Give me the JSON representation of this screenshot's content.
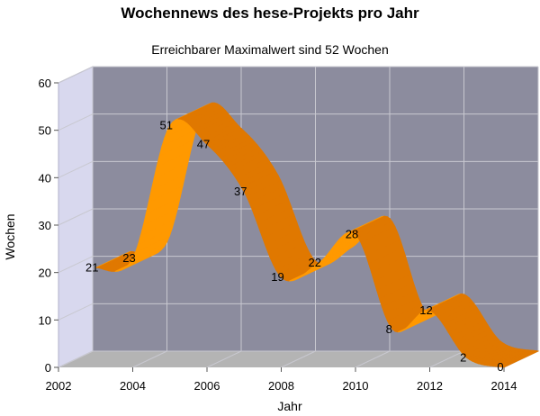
{
  "chart_data": {
    "type": "area",
    "title": "Wochennews des hese-Projekts pro Jahr",
    "subtitle": "Erreichbarer Maximalwert sind 52 Wochen",
    "xlabel": "Jahr",
    "ylabel": "Wochen",
    "x": [
      2003,
      2004,
      2005,
      2006,
      2007,
      2008,
      2009,
      2010,
      2011,
      2012,
      2013,
      2014
    ],
    "values": [
      21,
      23,
      51,
      47,
      37,
      19,
      22,
      28,
      8,
      12,
      2,
      0
    ],
    "xlim": [
      2002,
      2014
    ],
    "ylim": [
      0,
      60
    ],
    "x_ticks": [
      "2002",
      "2004",
      "2006",
      "2008",
      "2010",
      "2012",
      "2014"
    ],
    "y_ticks": [
      "0",
      "10",
      "20",
      "30",
      "40",
      "50",
      "60"
    ],
    "grid": true,
    "colors": {
      "series": "#ff9900",
      "series_dark": "#e07800",
      "back_wall": "#8c8c9e",
      "side_wall": "#d8d8ee",
      "floor": "#b4b4b4",
      "grid": "#c8c8d0"
    }
  }
}
